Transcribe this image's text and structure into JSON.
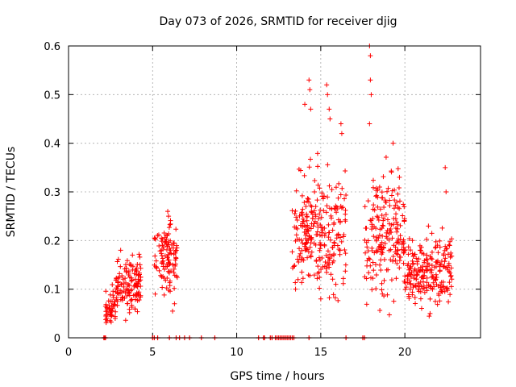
{
  "chart_data": {
    "type": "scatter",
    "title": "Day 073 of 2026, SRMTID for receiver djig",
    "xlabel": "GPS time / hours",
    "ylabel": "SRMTID / TECUs",
    "xlim": [
      0,
      24.5
    ],
    "ylim": [
      0,
      0.6
    ],
    "x_ticks": [
      "0",
      "5",
      "10",
      "15",
      "20"
    ],
    "x_tick_values": [
      0,
      5,
      10,
      15,
      20
    ],
    "y_ticks": [
      "0",
      "0.1",
      "0.2",
      "0.3",
      "0.4",
      "0.5",
      "0.6"
    ],
    "y_tick_values": [
      0,
      0.1,
      0.2,
      0.3,
      0.4,
      0.5,
      0.6
    ],
    "grid": true,
    "marker": "+",
    "series_color": "#ff0000",
    "clusters": [
      {
        "x_range": [
          2.2,
          2.8
        ],
        "y_center": 0.06,
        "y_spread": 0.02,
        "count": 50
      },
      {
        "x_range": [
          2.8,
          4.3
        ],
        "y_center": 0.11,
        "y_spread": 0.025,
        "count": 130
      },
      {
        "x_range": [
          5.1,
          6.5
        ],
        "y_center": 0.17,
        "y_spread": 0.04,
        "count": 110
      },
      {
        "x_range": [
          13.3,
          16.5
        ],
        "y_center": 0.22,
        "y_spread": 0.06,
        "count": 260
      },
      {
        "x_range": [
          17.6,
          20.0
        ],
        "y_center": 0.21,
        "y_spread": 0.06,
        "count": 200
      },
      {
        "x_range": [
          20.0,
          22.8
        ],
        "y_center": 0.14,
        "y_spread": 0.035,
        "count": 220
      }
    ],
    "highlight_points": [
      {
        "x": 17.9,
        "y": 0.6
      },
      {
        "x": 17.95,
        "y": 0.58
      },
      {
        "x": 17.95,
        "y": 0.53
      },
      {
        "x": 18.0,
        "y": 0.5
      },
      {
        "x": 17.9,
        "y": 0.44
      },
      {
        "x": 14.3,
        "y": 0.53
      },
      {
        "x": 14.35,
        "y": 0.51
      },
      {
        "x": 14.4,
        "y": 0.47
      },
      {
        "x": 14.05,
        "y": 0.48
      },
      {
        "x": 15.35,
        "y": 0.52
      },
      {
        "x": 15.4,
        "y": 0.5
      },
      {
        "x": 15.5,
        "y": 0.47
      },
      {
        "x": 15.55,
        "y": 0.45
      },
      {
        "x": 16.2,
        "y": 0.44
      },
      {
        "x": 16.25,
        "y": 0.42
      },
      {
        "x": 19.3,
        "y": 0.4
      },
      {
        "x": 22.4,
        "y": 0.35
      },
      {
        "x": 22.45,
        "y": 0.3
      },
      {
        "x": 15.0,
        "y": 0.08
      },
      {
        "x": 21.5,
        "y": 0.05
      },
      {
        "x": 2.3,
        "y": 0.035
      },
      {
        "x": 3.1,
        "y": 0.18
      },
      {
        "x": 3.8,
        "y": 0.17
      },
      {
        "x": 5.9,
        "y": 0.26
      },
      {
        "x": 5.95,
        "y": 0.25
      },
      {
        "x": 6.3,
        "y": 0.07
      },
      {
        "x": 13.5,
        "y": 0.1
      }
    ],
    "zero_points_x": [
      2.1,
      2.15,
      2.2,
      5.0,
      5.1,
      5.3,
      6.0,
      6.4,
      6.6,
      6.9,
      7.2,
      7.9,
      8.7,
      11.3,
      11.6,
      11.65,
      12.0,
      12.1,
      12.3,
      12.4,
      12.5,
      12.6,
      12.7,
      12.8,
      12.9,
      13.0,
      13.1,
      13.2,
      13.3,
      13.4,
      14.3,
      16.5,
      17.5,
      17.6
    ]
  }
}
